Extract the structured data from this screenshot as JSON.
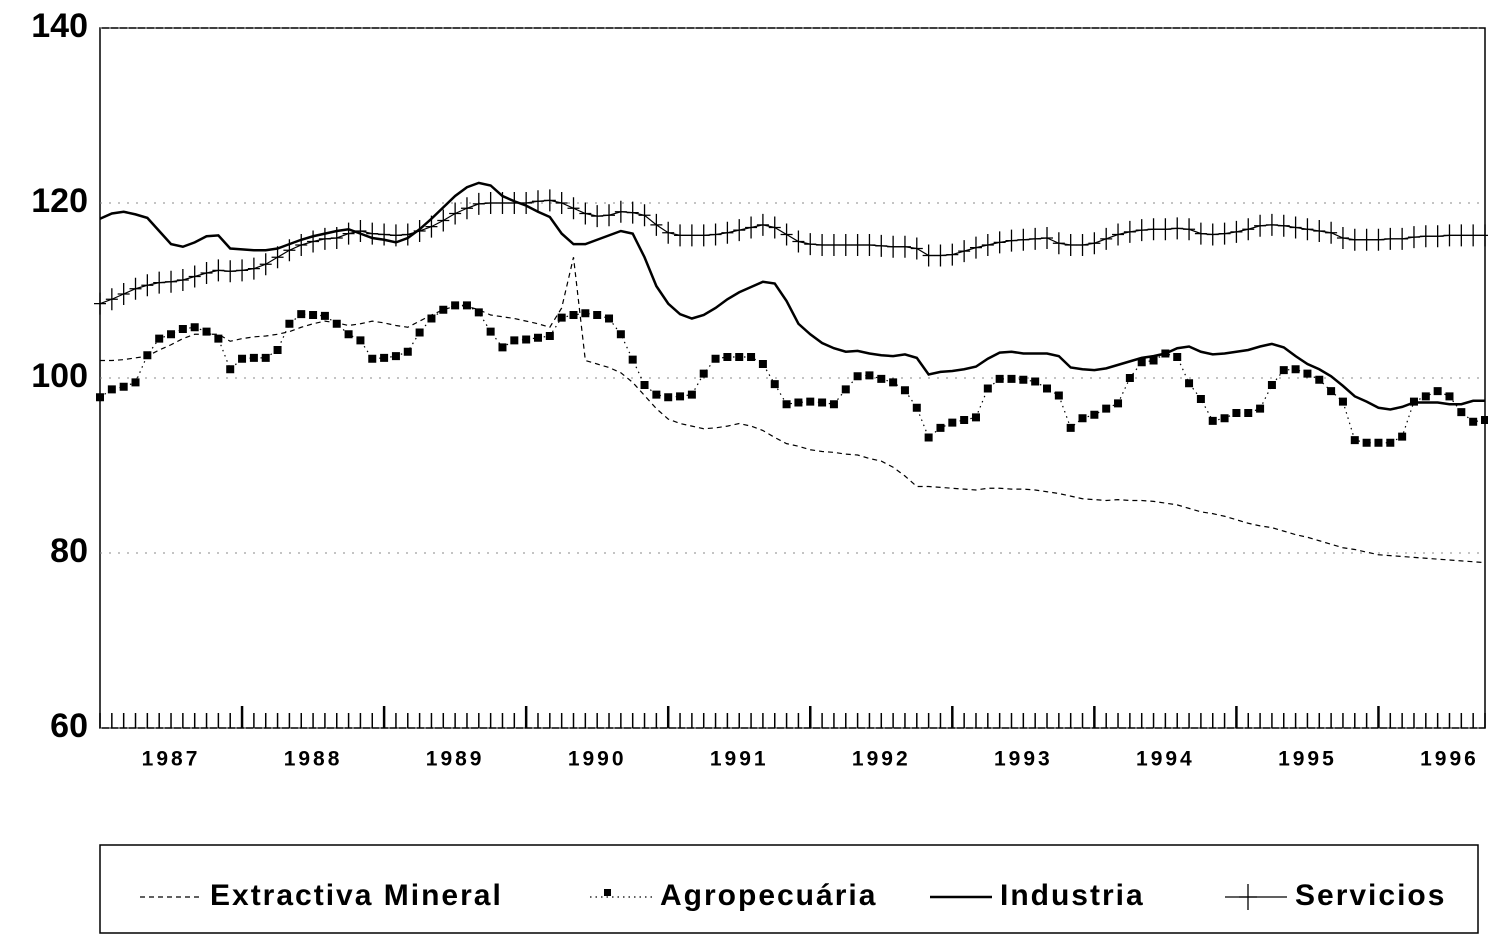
{
  "chart_data": {
    "type": "line",
    "categories": [
      null,
      null,
      null,
      null,
      null,
      null,
      "1987",
      null,
      null,
      null,
      null,
      null,
      null,
      null,
      null,
      null,
      null,
      null,
      "1988",
      null,
      null,
      null,
      null,
      null,
      null,
      null,
      null,
      null,
      null,
      null,
      "1989",
      null,
      null,
      null,
      null,
      null,
      null,
      null,
      null,
      null,
      null,
      null,
      "1990",
      null,
      null,
      null,
      null,
      null,
      null,
      null,
      null,
      null,
      null,
      null,
      "1991",
      null,
      null,
      null,
      null,
      null,
      null,
      null,
      null,
      null,
      null,
      null,
      "1992",
      null,
      null,
      null,
      null,
      null,
      null,
      null,
      null,
      null,
      null,
      null,
      "1993",
      null,
      null,
      null,
      null,
      null,
      null,
      null,
      null,
      null,
      null,
      null,
      "1994",
      null,
      null,
      null,
      null,
      null,
      null,
      null,
      null,
      null,
      null,
      null,
      "1995",
      null,
      null,
      null,
      null,
      null,
      null,
      null,
      null,
      null,
      null,
      null,
      "1996",
      null,
      null,
      null
    ],
    "ylim": [
      60,
      140
    ],
    "yticks": [
      60,
      80,
      100,
      120,
      140
    ],
    "grid": true,
    "series": [
      {
        "name": "Extractiva Mineral",
        "color": "#000000",
        "line_style": "dashed",
        "marker": "none",
        "values": [
          102,
          102,
          102.1,
          102.3,
          102.5,
          103.2,
          103.8,
          104.5,
          105,
          105,
          105,
          104.2,
          104.5,
          104.7,
          104.8,
          105,
          105.3,
          105.8,
          106.2,
          106.5,
          106.3,
          106,
          106.2,
          106.5,
          106.3,
          106,
          105.8,
          106.5,
          107.2,
          107.8,
          108.2,
          108.2,
          107.8,
          107.2,
          107,
          106.8,
          106.5,
          106.2,
          105.8,
          108,
          113.8,
          102,
          101.6,
          101.2,
          100.6,
          99.5,
          98,
          96.5,
          95.3,
          94.8,
          94.5,
          94.2,
          94.3,
          94.5,
          94.8,
          94.5,
          94,
          93.2,
          92.5,
          92.2,
          91.8,
          91.6,
          91.5,
          91.3,
          91.2,
          90.8,
          90.5,
          89.8,
          88.8,
          87.6,
          87.6,
          87.5,
          87.4,
          87.3,
          87.2,
          87.4,
          87.4,
          87.3,
          87.3,
          87.2,
          87,
          86.8,
          86.5,
          86.2,
          86.1,
          86,
          86.1,
          86,
          86,
          85.9,
          85.7,
          85.5,
          85.1,
          84.7,
          84.5,
          84.2,
          83.8,
          83.4,
          83.1,
          82.9,
          82.5,
          82.1,
          81.8,
          81.4,
          81,
          80.6,
          80.4,
          80.1,
          79.8,
          79.7,
          79.6,
          79.5,
          79.4,
          79.3,
          79.2,
          79.1,
          79,
          78.9
        ]
      },
      {
        "name": "Agropecuária",
        "color": "#000000",
        "line_style": "dotted",
        "marker": "square",
        "values": [
          97.8,
          98.7,
          99,
          99.5,
          102.6,
          104.5,
          105,
          105.6,
          105.8,
          105.3,
          104.5,
          101,
          102.2,
          102.3,
          102.3,
          103.2,
          106.2,
          107.3,
          107.2,
          107.1,
          106.2,
          105,
          104.3,
          102.2,
          102.3,
          102.5,
          103,
          105.2,
          106.8,
          107.8,
          108.3,
          108.3,
          107.5,
          105.3,
          103.5,
          104.3,
          104.4,
          104.6,
          104.8,
          106.9,
          107.2,
          107.4,
          107.2,
          106.8,
          105,
          102.1,
          99.2,
          98.1,
          97.8,
          97.9,
          98.1,
          100.5,
          102.2,
          102.4,
          102.4,
          102.4,
          101.6,
          99.3,
          97,
          97.2,
          97.3,
          97.2,
          97,
          98.7,
          100.2,
          100.3,
          99.9,
          99.5,
          98.6,
          96.6,
          93.2,
          94.3,
          94.9,
          95.2,
          95.5,
          98.8,
          99.9,
          99.9,
          99.8,
          99.6,
          98.8,
          98,
          94.3,
          95.4,
          95.8,
          96.5,
          97.1,
          100,
          101.8,
          102,
          102.8,
          102.4,
          99.4,
          97.6,
          95.1,
          95.4,
          96,
          96,
          96.5,
          99.2,
          100.9,
          101,
          100.5,
          99.8,
          98.5,
          97.3,
          92.9,
          92.6,
          92.6,
          92.6,
          93.3,
          97.3,
          97.9,
          98.5,
          97.9,
          96.1,
          95,
          95.2
        ]
      },
      {
        "name": "Industria",
        "color": "#000000",
        "line_style": "solid",
        "marker": "none",
        "values": [
          118.2,
          118.8,
          119,
          118.7,
          118.3,
          116.8,
          115.3,
          115,
          115.5,
          116.2,
          116.3,
          114.8,
          114.7,
          114.6,
          114.6,
          114.8,
          115.3,
          115.8,
          116.2,
          116.5,
          116.8,
          117,
          116.5,
          116,
          115.8,
          115.5,
          116,
          117,
          118.2,
          119.5,
          120.8,
          121.8,
          122.3,
          122,
          120.8,
          120.2,
          119.7,
          119,
          118.4,
          116.5,
          115.3,
          115.3,
          115.8,
          116.3,
          116.8,
          116.5,
          113.8,
          110.5,
          108.5,
          107.3,
          106.8,
          107.2,
          108,
          109,
          109.8,
          110.4,
          111,
          110.8,
          108.8,
          106.2,
          105,
          104,
          103.4,
          103,
          103.1,
          102.8,
          102.6,
          102.5,
          102.7,
          102.3,
          100.4,
          100.7,
          100.8,
          101,
          101.3,
          102.2,
          102.9,
          103,
          102.8,
          102.8,
          102.8,
          102.5,
          101.2,
          101,
          100.9,
          101.1,
          101.5,
          101.9,
          102.3,
          102.5,
          102.8,
          103.4,
          103.6,
          103,
          102.7,
          102.8,
          103,
          103.2,
          103.6,
          103.9,
          103.5,
          102.5,
          101.6,
          101,
          100.2,
          99.1,
          97.9,
          97.3,
          96.6,
          96.4,
          96.7,
          97.2,
          97.2,
          97.2,
          97,
          97,
          97.4,
          97.4
        ]
      },
      {
        "name": "Servicios",
        "color": "#000000",
        "line_style": "thin",
        "marker": "plus",
        "values": [
          108.5,
          109,
          109.6,
          110.2,
          110.6,
          110.9,
          111,
          111.2,
          111.6,
          112,
          112.3,
          112.2,
          112.3,
          112.5,
          113,
          113.8,
          114.6,
          115.2,
          115.6,
          115.9,
          116,
          116.5,
          116.8,
          116.5,
          116.4,
          116.3,
          116.4,
          116.8,
          117.3,
          118,
          118.8,
          119.4,
          119.9,
          120,
          120,
          120,
          120,
          120.2,
          120.3,
          120,
          119.4,
          118.8,
          118.5,
          118.6,
          119,
          118.9,
          118.6,
          117.5,
          116.6,
          116.3,
          116.3,
          116.3,
          116.4,
          116.6,
          116.9,
          117.2,
          117.5,
          117.2,
          116.4,
          115.6,
          115.3,
          115.2,
          115.2,
          115.2,
          115.2,
          115.2,
          115.1,
          115,
          115,
          114.8,
          114,
          114,
          114.1,
          114.5,
          114.9,
          115.2,
          115.5,
          115.7,
          115.8,
          115.9,
          116,
          115.4,
          115.2,
          115.2,
          115.4,
          115.9,
          116.4,
          116.7,
          116.9,
          117,
          117,
          117.1,
          117,
          116.5,
          116.4,
          116.5,
          116.7,
          117,
          117.4,
          117.5,
          117.4,
          117.2,
          117,
          116.8,
          116.6,
          116,
          115.8,
          115.8,
          115.8,
          115.9,
          115.9,
          116.1,
          116.2,
          116.2,
          116.3,
          116.3,
          116.3,
          116.3
        ]
      }
    ]
  }
}
